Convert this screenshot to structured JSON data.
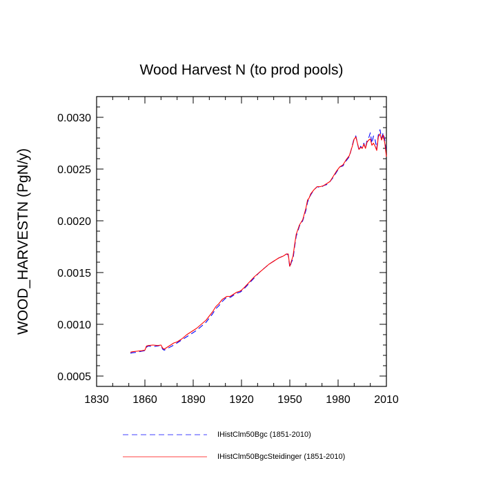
{
  "chart_data": {
    "type": "line",
    "title": "Wood Harvest N (to prod pools)",
    "xlabel": "",
    "ylabel": "WOOD_HARVESTN  (PgN/y)",
    "xlim": [
      1830,
      2010
    ],
    "ylim": [
      0.0004,
      0.0032
    ],
    "xticks": [
      1830,
      1860,
      1890,
      1920,
      1950,
      1980,
      2010
    ],
    "xtick_labels": [
      "1830",
      "1860",
      "1890",
      "1920",
      "1950",
      "1980",
      "2010"
    ],
    "yticks": [
      0.0005,
      0.001,
      0.0015,
      0.002,
      0.0025,
      0.003
    ],
    "ytick_labels": [
      "0.0005",
      "0.0010",
      "0.0015",
      "0.0020",
      "0.0025",
      "0.0030"
    ],
    "grid": false,
    "legend_position": "bottom",
    "series": [
      {
        "name": "IHistClm50Bgc (1851-2010)",
        "color": "#0000ff",
        "dash": "dashed",
        "x": [
          1851,
          1852,
          1855,
          1858,
          1860,
          1861,
          1862,
          1865,
          1868,
          1870,
          1871,
          1872,
          1875,
          1878,
          1880,
          1883,
          1886,
          1889,
          1892,
          1895,
          1898,
          1900,
          1902,
          1904,
          1906,
          1908,
          1910,
          1911,
          1913,
          1915,
          1917,
          1919,
          1920,
          1922,
          1925,
          1928,
          1931,
          1934,
          1937,
          1940,
          1943,
          1946,
          1948,
          1949,
          1950,
          1951,
          1952,
          1953,
          1954,
          1956,
          1958,
          1960,
          1961,
          1962,
          1963,
          1965,
          1967,
          1969,
          1971,
          1973,
          1975,
          1977,
          1979,
          1981,
          1983,
          1985,
          1987,
          1988,
          1989,
          1990,
          1991,
          1992,
          1993,
          1994,
          1995,
          1996,
          1997,
          1998,
          1999,
          2000,
          2001,
          2002,
          2003,
          2004,
          2005,
          2006,
          2007,
          2008,
          2009,
          2010
        ],
        "y": [
          0.00072,
          0.000725,
          0.00073,
          0.00074,
          0.000745,
          0.00078,
          0.00079,
          0.000785,
          0.00079,
          0.0008,
          0.00076,
          0.00075,
          0.000775,
          0.0008,
          0.00082,
          0.00085,
          0.00088,
          0.00091,
          0.00094,
          0.00098,
          0.00102,
          0.00106,
          0.0011,
          0.00115,
          0.00118,
          0.00122,
          0.00125,
          0.00126,
          0.00126,
          0.00128,
          0.0013,
          0.00131,
          0.00132,
          0.00135,
          0.0014,
          0.00145,
          0.0015,
          0.00154,
          0.00158,
          0.00161,
          0.00164,
          0.00166,
          0.00168,
          0.00167,
          0.00155,
          0.0016,
          0.00163,
          0.00175,
          0.00185,
          0.00195,
          0.002,
          0.0021,
          0.00218,
          0.00222,
          0.00225,
          0.0023,
          0.00233,
          0.00232,
          0.00234,
          0.00235,
          0.00238,
          0.00242,
          0.00247,
          0.00252,
          0.00253,
          0.00258,
          0.00262,
          0.00268,
          0.00274,
          0.0028,
          0.00282,
          0.00275,
          0.00268,
          0.00272,
          0.0027,
          0.00275,
          0.0027,
          0.00278,
          0.0028,
          0.00285,
          0.00275,
          0.00282,
          0.00278,
          0.0027,
          0.00283,
          0.00288,
          0.0028,
          0.00285,
          0.00278,
          0.00265
        ]
      },
      {
        "name": "IHistClm50BgcSteidinger (1851-2010)",
        "color": "#ff0000",
        "dash": "solid",
        "x": [
          1851,
          1852,
          1855,
          1858,
          1860,
          1861,
          1862,
          1865,
          1868,
          1870,
          1871,
          1872,
          1875,
          1878,
          1880,
          1883,
          1886,
          1889,
          1892,
          1895,
          1898,
          1900,
          1902,
          1904,
          1906,
          1908,
          1910,
          1911,
          1913,
          1915,
          1917,
          1919,
          1920,
          1922,
          1925,
          1928,
          1931,
          1934,
          1937,
          1940,
          1943,
          1946,
          1948,
          1949,
          1950,
          1951,
          1952,
          1953,
          1954,
          1956,
          1958,
          1960,
          1961,
          1962,
          1963,
          1965,
          1967,
          1969,
          1971,
          1973,
          1975,
          1977,
          1979,
          1981,
          1983,
          1985,
          1987,
          1988,
          1989,
          1990,
          1991,
          1992,
          1993,
          1994,
          1995,
          1996,
          1997,
          1998,
          1999,
          2000,
          2001,
          2002,
          2003,
          2004,
          2005,
          2006,
          2007,
          2008,
          2009,
          2010
        ],
        "y": [
          0.00073,
          0.000735,
          0.00074,
          0.000745,
          0.00075,
          0.00079,
          0.000795,
          0.0008,
          0.000795,
          0.0008,
          0.00077,
          0.00076,
          0.00079,
          0.00082,
          0.00083,
          0.00086,
          0.0009,
          0.00093,
          0.00096,
          0.001,
          0.00104,
          0.00108,
          0.00112,
          0.00117,
          0.0012,
          0.00124,
          0.00126,
          0.00127,
          0.00127,
          0.00129,
          0.00131,
          0.00132,
          0.00133,
          0.00136,
          0.00141,
          0.00146,
          0.0015,
          0.00154,
          0.00158,
          0.00161,
          0.00164,
          0.00166,
          0.00168,
          0.00168,
          0.00156,
          0.00161,
          0.00166,
          0.00177,
          0.00187,
          0.00196,
          0.00201,
          0.00212,
          0.0022,
          0.00222,
          0.00226,
          0.0023,
          0.00233,
          0.00233,
          0.00234,
          0.00236,
          0.00238,
          0.00243,
          0.00248,
          0.00252,
          0.00254,
          0.00259,
          0.00263,
          0.00268,
          0.00273,
          0.00279,
          0.00281,
          0.00275,
          0.00269,
          0.00271,
          0.0027,
          0.00274,
          0.0027,
          0.00276,
          0.00278,
          0.00279,
          0.00273,
          0.00275,
          0.00272,
          0.00268,
          0.00281,
          0.00284,
          0.00278,
          0.00283,
          0.00275,
          0.00262
        ]
      }
    ]
  }
}
